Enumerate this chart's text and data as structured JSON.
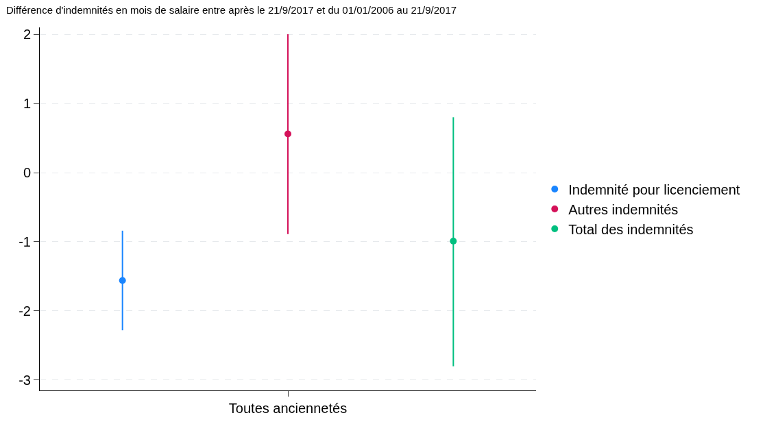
{
  "chart_data": {
    "type": "scatter",
    "title": "Différence d'indemnités en mois de salaire entre après le 21/9/2017 et du 01/01/2006 au 21/9/2017",
    "categories": [
      "Toutes anciennetés"
    ],
    "series": [
      {
        "name": "Indemnité pour licenciement",
        "color": "#1a85ff",
        "values": [
          -1.56
        ],
        "errors": [
          [
            -2.28,
            -0.84
          ]
        ]
      },
      {
        "name": "Autres indemnités",
        "color": "#d41159",
        "values": [
          0.56
        ],
        "errors": [
          [
            -0.89,
            2.0
          ]
        ]
      },
      {
        "name": "Total des indemnités",
        "color": "#00bf7f",
        "values": [
          -0.99
        ],
        "errors": [
          [
            -2.8,
            0.8
          ]
        ]
      }
    ],
    "ylim": [
      -3.15,
      2.1
    ],
    "yticks": [
      -3,
      -2,
      -1,
      0,
      1,
      2
    ],
    "grid": "y",
    "legend": "right",
    "marker": "circle"
  }
}
